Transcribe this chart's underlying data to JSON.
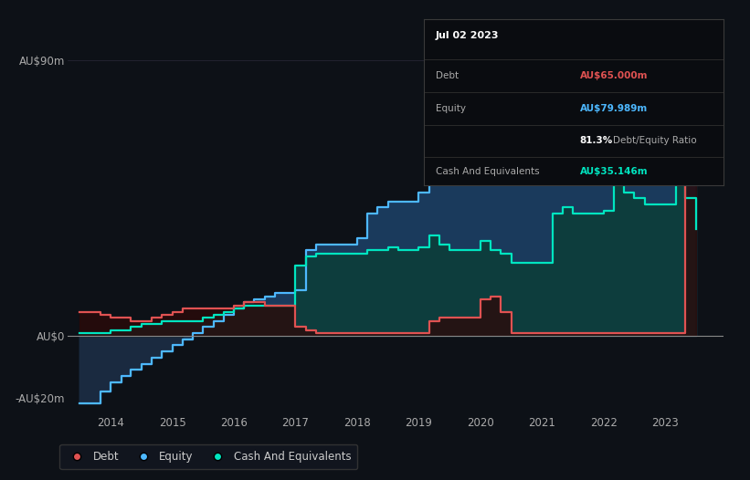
{
  "background_color": "#0d1117",
  "plot_bg_color": "#0d1117",
  "ylim": [
    -25,
    105
  ],
  "xlim_start": 2013.3,
  "xlim_end": 2023.95,
  "xtick_labels": [
    "2014",
    "2015",
    "2016",
    "2017",
    "2018",
    "2019",
    "2020",
    "2021",
    "2022",
    "2023"
  ],
  "xtick_positions": [
    2014,
    2015,
    2016,
    2017,
    2018,
    2019,
    2020,
    2021,
    2022,
    2023
  ],
  "debt_color": "#e05252",
  "equity_color": "#4db8ff",
  "cash_color": "#00e5c0",
  "legend_items": [
    {
      "label": "Debt",
      "color": "#e05252"
    },
    {
      "label": "Equity",
      "color": "#4db8ff"
    },
    {
      "label": "Cash And Equivalents",
      "color": "#00e5c0"
    }
  ],
  "tooltip_date": "Jul 02 2023",
  "tooltip_debt_label": "Debt",
  "tooltip_debt_value": "AU$65.000m",
  "tooltip_equity_label": "Equity",
  "tooltip_equity_value": "AU$79.989m",
  "tooltip_ratio_value": "81.3%",
  "tooltip_ratio_label": "Debt/Equity Ratio",
  "tooltip_cash_label": "Cash And Equivalents",
  "tooltip_cash_value": "AU$35.146m",
  "dates": [
    2013.5,
    2013.83,
    2014.0,
    2014.17,
    2014.33,
    2014.5,
    2014.67,
    2014.83,
    2015.0,
    2015.17,
    2015.33,
    2015.5,
    2015.67,
    2015.83,
    2016.0,
    2016.17,
    2016.33,
    2016.5,
    2016.67,
    2016.83,
    2017.0,
    2017.17,
    2017.33,
    2017.5,
    2017.67,
    2017.83,
    2018.0,
    2018.17,
    2018.33,
    2018.5,
    2018.67,
    2018.83,
    2019.0,
    2019.17,
    2019.33,
    2019.5,
    2019.67,
    2019.83,
    2020.0,
    2020.17,
    2020.33,
    2020.5,
    2020.67,
    2020.83,
    2021.0,
    2021.17,
    2021.33,
    2021.5,
    2021.67,
    2021.83,
    2022.0,
    2022.17,
    2022.33,
    2022.5,
    2022.67,
    2022.83,
    2023.0,
    2023.17,
    2023.33,
    2023.5
  ],
  "equity_values": [
    -22,
    -18,
    -15,
    -13,
    -11,
    -9,
    -7,
    -5,
    -3,
    -1,
    1,
    3,
    5,
    7,
    9,
    11,
    12,
    13,
    14,
    14,
    15,
    28,
    30,
    30,
    30,
    30,
    32,
    40,
    42,
    44,
    44,
    44,
    47,
    55,
    56,
    55,
    54,
    54,
    66,
    62,
    60,
    57,
    55,
    53,
    53,
    55,
    57,
    57,
    58,
    58,
    60,
    68,
    72,
    70,
    68,
    66,
    66,
    78,
    95,
    80
  ],
  "cash_values": [
    1,
    1,
    2,
    2,
    3,
    4,
    4,
    5,
    5,
    5,
    5,
    6,
    7,
    8,
    9,
    10,
    10,
    10,
    10,
    10,
    23,
    26,
    27,
    27,
    27,
    27,
    27,
    28,
    28,
    29,
    28,
    28,
    29,
    33,
    30,
    28,
    28,
    28,
    31,
    28,
    27,
    24,
    24,
    24,
    24,
    40,
    42,
    40,
    40,
    40,
    41,
    55,
    47,
    45,
    43,
    43,
    43,
    52,
    45,
    35
  ],
  "debt_values": [
    8,
    7,
    6,
    6,
    5,
    5,
    6,
    7,
    8,
    9,
    9,
    9,
    9,
    9,
    10,
    11,
    11,
    10,
    10,
    10,
    3,
    2,
    1,
    1,
    1,
    1,
    1,
    1,
    1,
    1,
    1,
    1,
    1,
    5,
    6,
    6,
    6,
    6,
    12,
    13,
    8,
    1,
    1,
    1,
    1,
    1,
    1,
    1,
    1,
    1,
    1,
    1,
    1,
    1,
    1,
    1,
    1,
    1,
    65,
    65
  ]
}
